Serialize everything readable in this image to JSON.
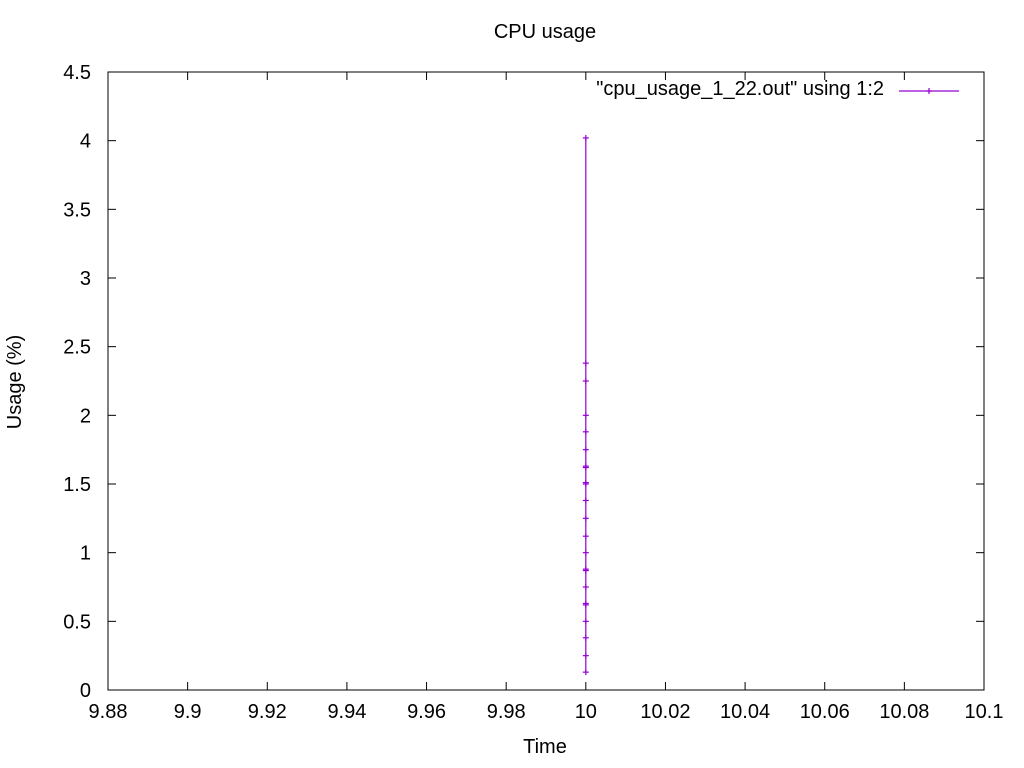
{
  "chart_data": {
    "type": "line",
    "title": "CPU usage",
    "xlabel": "Time",
    "ylabel": "Usage (%)",
    "xlim": [
      9.88,
      10.1
    ],
    "ylim": [
      0,
      4.5
    ],
    "x_ticks": [
      9.88,
      9.9,
      9.92,
      9.94,
      9.96,
      9.98,
      10,
      10.02,
      10.04,
      10.06,
      10.08,
      10.1
    ],
    "x_tick_labels": [
      "9.88",
      "9.9",
      "9.92",
      "9.94",
      "9.96",
      "9.98",
      "10",
      "10.02",
      "10.04",
      "10.06",
      "10.08",
      "10.1"
    ],
    "y_ticks": [
      0,
      0.5,
      1,
      1.5,
      2,
      2.5,
      3,
      3.5,
      4,
      4.5
    ],
    "y_tick_labels": [
      "0",
      "0.5",
      "1",
      "1.5",
      "2",
      "2.5",
      "3",
      "3.5",
      "4",
      "4.5"
    ],
    "grid": false,
    "legend_position": "top-right",
    "series": [
      {
        "name": "\"cpu_usage_1_22.out\" using 1:2",
        "color": "#9400d3",
        "marker": "plus",
        "points": [
          {
            "x": 10,
            "y": 0.13
          },
          {
            "x": 10,
            "y": 4.02
          },
          {
            "x": 10,
            "y": 0.25
          },
          {
            "x": 10,
            "y": 2.38
          },
          {
            "x": 10,
            "y": 0.38
          },
          {
            "x": 10,
            "y": 2.25
          },
          {
            "x": 10,
            "y": 0.5
          },
          {
            "x": 10,
            "y": 2.0
          },
          {
            "x": 10,
            "y": 0.62
          },
          {
            "x": 10,
            "y": 1.88
          },
          {
            "x": 10,
            "y": 0.63
          },
          {
            "x": 10,
            "y": 1.75
          },
          {
            "x": 10,
            "y": 0.75
          },
          {
            "x": 10,
            "y": 1.63
          },
          {
            "x": 10,
            "y": 0.87
          },
          {
            "x": 10,
            "y": 1.62
          },
          {
            "x": 10,
            "y": 0.88
          },
          {
            "x": 10,
            "y": 1.5
          },
          {
            "x": 10,
            "y": 1.0
          },
          {
            "x": 10,
            "y": 1.38
          },
          {
            "x": 10,
            "y": 1.12
          },
          {
            "x": 10,
            "y": 1.25
          },
          {
            "x": 10,
            "y": 1.51
          }
        ]
      }
    ]
  }
}
